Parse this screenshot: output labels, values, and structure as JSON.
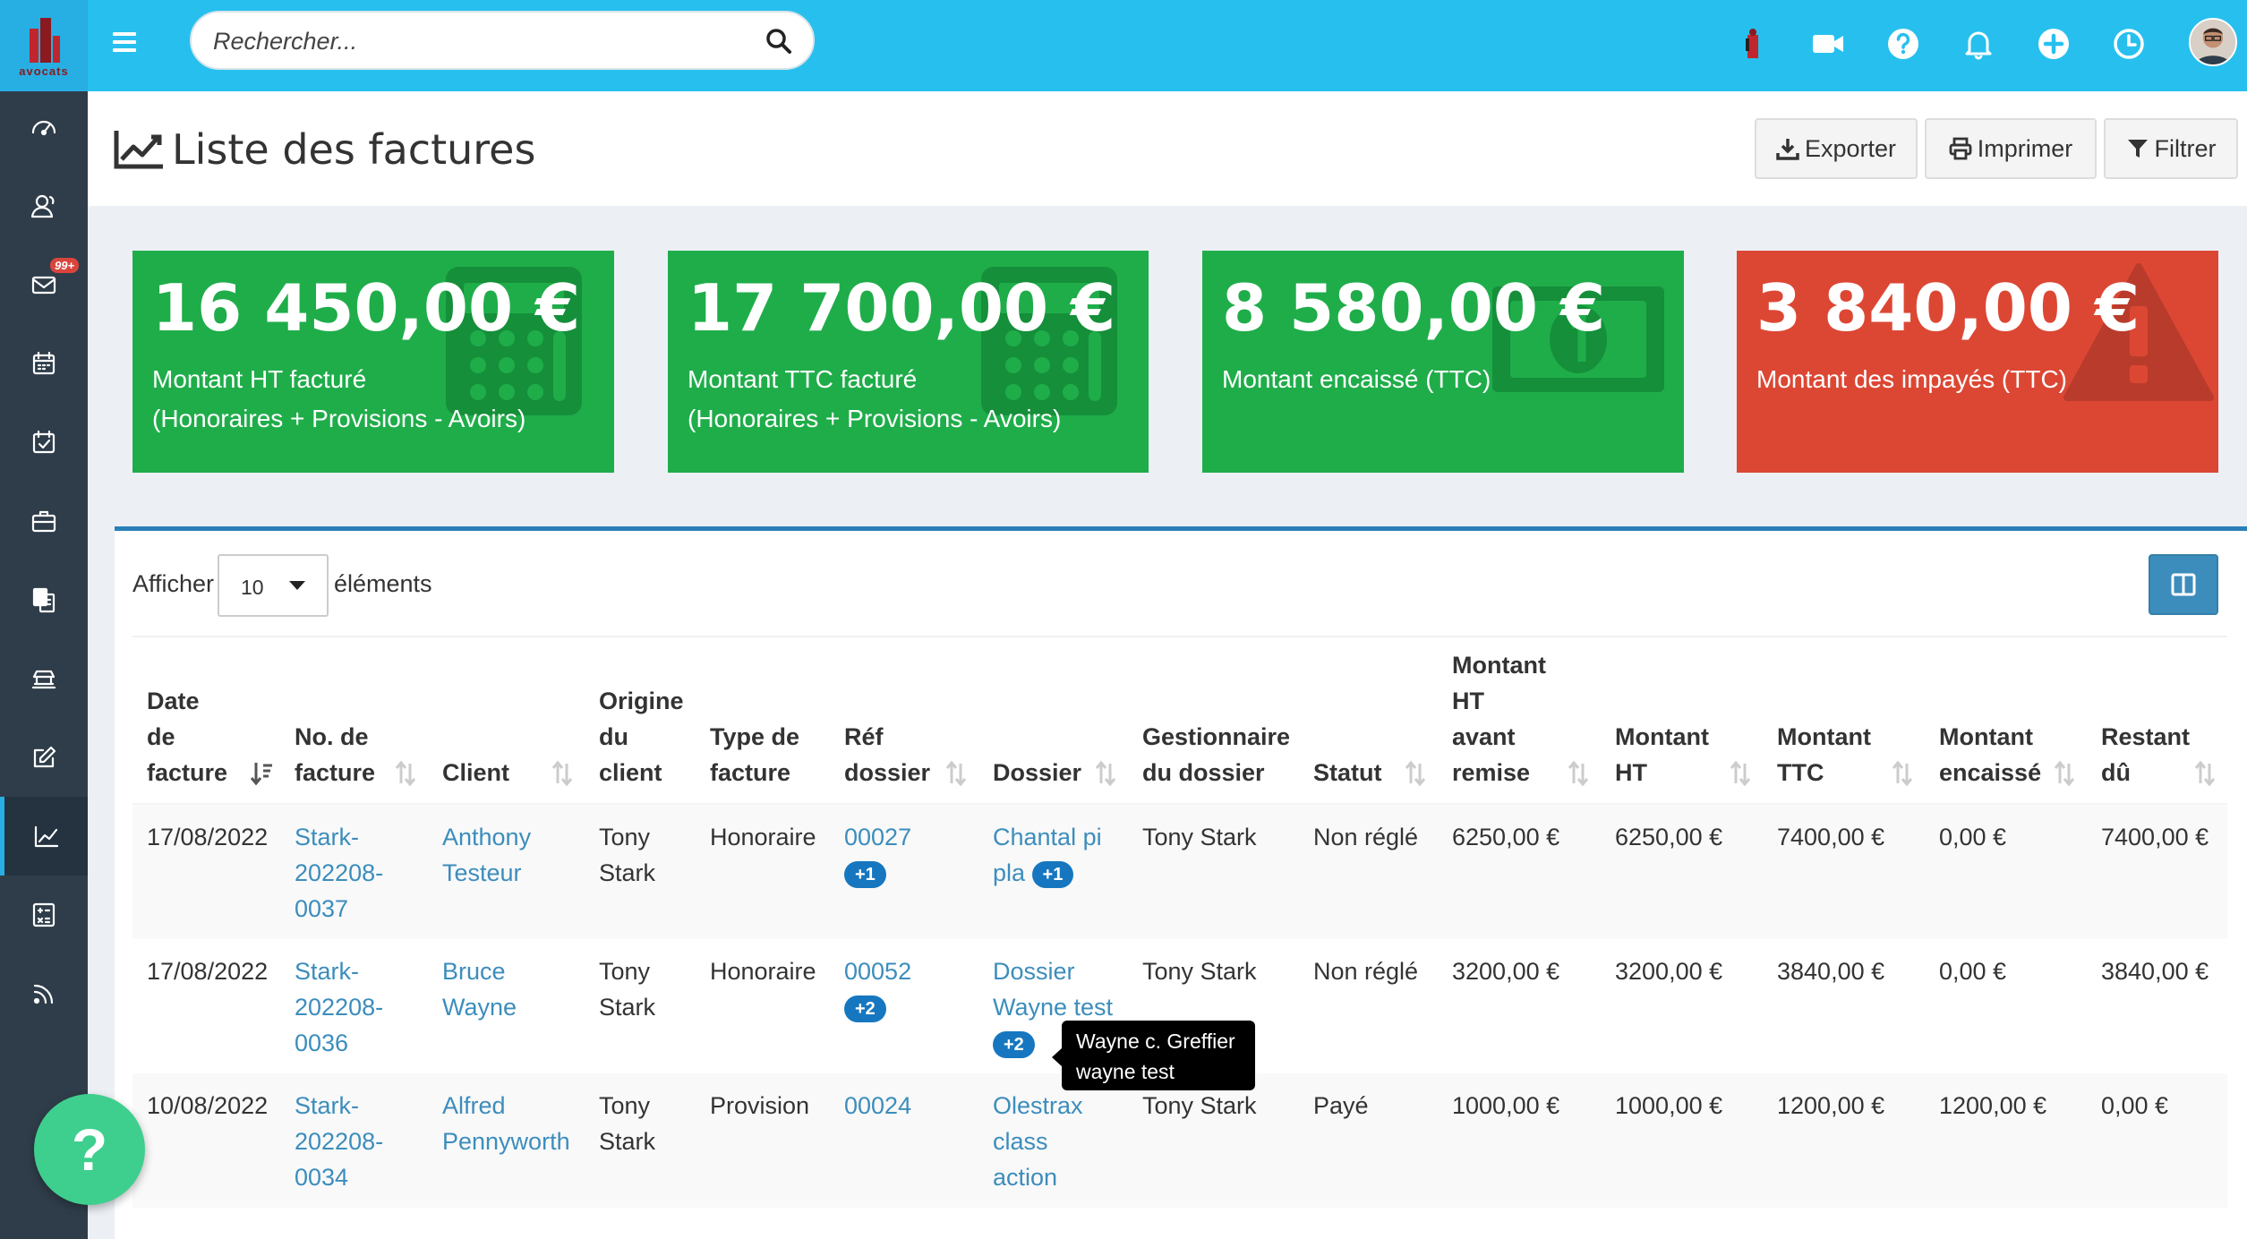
{
  "app": {
    "logo_text": "avocats"
  },
  "sidebar": {
    "items": [
      {
        "id": "dashboard",
        "icon": "dashboard-icon"
      },
      {
        "id": "contacts",
        "icon": "contacts-icon"
      },
      {
        "id": "mail",
        "icon": "mail-icon",
        "badge": "99+"
      },
      {
        "id": "calendar",
        "icon": "calendar-icon"
      },
      {
        "id": "tasks",
        "icon": "calendar-check-icon"
      },
      {
        "id": "cases",
        "icon": "briefcase-icon"
      },
      {
        "id": "documents",
        "icon": "documents-icon"
      },
      {
        "id": "court",
        "icon": "court-icon"
      },
      {
        "id": "edit",
        "icon": "edit-icon"
      },
      {
        "id": "invoices",
        "icon": "line-chart-icon",
        "active": true
      },
      {
        "id": "calculator",
        "icon": "calculator-icon"
      },
      {
        "id": "feed",
        "icon": "rss-icon"
      }
    ]
  },
  "search": {
    "placeholder": "Rechercher..."
  },
  "topbar": {
    "icons": [
      "user-icon",
      "video-icon",
      "help-icon",
      "bell-icon",
      "plus-icon",
      "clock-icon"
    ]
  },
  "page": {
    "title": "Liste des factures",
    "buttons": {
      "export": "Exporter",
      "print": "Imprimer",
      "filter": "Filtrer"
    }
  },
  "stats": [
    {
      "amount": "16 450,00 €",
      "line1": "Montant HT facturé",
      "line2": "(Honoraires + Provisions - Avoirs)",
      "color": "#1fad4a",
      "icon": "calculator-icon"
    },
    {
      "amount": "17 700,00 €",
      "line1": "Montant TTC facturé",
      "line2": "(Honoraires + Provisions - Avoirs)",
      "color": "#1fad4a",
      "icon": "calculator-icon"
    },
    {
      "amount": "8 580,00 €",
      "line1": "Montant encaissé (TTC)",
      "line2": "",
      "color": "#1fad4a",
      "icon": "money-bill-icon"
    },
    {
      "amount": "3 840,00 €",
      "line1": "Montant des impayés (TTC)",
      "line2": "",
      "color": "#dc4734",
      "icon": "warning-icon"
    }
  ],
  "table": {
    "show_label": "Afficher",
    "page_size": "10",
    "elements_label": "éléments",
    "headers": [
      [
        "Date",
        "de",
        "facture"
      ],
      [
        "No. de",
        "facture"
      ],
      [
        "Client"
      ],
      [
        "Origine",
        "du",
        "client"
      ],
      [
        "Type de",
        "facture"
      ],
      [
        "Réf",
        "dossier"
      ],
      [
        "Dossier"
      ],
      [
        "Gestionnaire",
        "du dossier"
      ],
      [
        "Statut"
      ],
      [
        "Montant",
        "HT",
        "avant",
        "remise"
      ],
      [
        "Montant",
        "HT"
      ],
      [
        "Montant",
        "TTC"
      ],
      [
        "Montant",
        "encaissé"
      ],
      [
        "Restant",
        "dû"
      ]
    ],
    "rows": [
      {
        "date": "17/08/2022",
        "number": [
          "Stark-",
          "202208-",
          "0037"
        ],
        "client": [
          "Anthony",
          "Testeur"
        ],
        "origin": [
          "Tony",
          "Stark"
        ],
        "type": "Honoraire",
        "ref": "00027",
        "ref_extra": "+1",
        "dossier": [
          "Chantal pi",
          "pla"
        ],
        "dossier_extra": "+1",
        "manager": "Tony Stark",
        "status": "Non réglé",
        "ht_before": "6250,00 €",
        "ht": "6250,00 €",
        "ttc": "7400,00 €",
        "paid": "0,00 €",
        "due": "7400,00 €"
      },
      {
        "date": "17/08/2022",
        "number": [
          "Stark-",
          "202208-",
          "0036"
        ],
        "client": [
          "Bruce",
          "Wayne"
        ],
        "origin": [
          "Tony",
          "Stark"
        ],
        "type": "Honoraire",
        "ref": "00052",
        "ref_extra": "+2",
        "dossier": [
          "Dossier",
          "Wayne test"
        ],
        "dossier_extra": "+2",
        "manager": "Tony Stark",
        "status": "Non réglé",
        "ht_before": "3200,00 €",
        "ht": "3200,00 €",
        "ttc": "3840,00 €",
        "paid": "0,00 €",
        "due": "3840,00 €"
      },
      {
        "date": "10/08/2022",
        "number": [
          "Stark-",
          "202208-",
          "0034"
        ],
        "client": [
          "Alfred",
          "Pennyworth"
        ],
        "origin": [
          "Tony",
          "Stark"
        ],
        "type": "Provision",
        "ref": "00024",
        "ref_extra": "",
        "dossier": [
          "Olestrax",
          "class",
          "action"
        ],
        "dossier_extra": "",
        "manager": "Tony Stark",
        "status": "Payé",
        "ht_before": "1000,00 €",
        "ht": "1000,00 €",
        "ttc": "1200,00 €",
        "paid": "1200,00 €",
        "due": "0,00 €"
      }
    ]
  },
  "tooltip": {
    "line1": "Wayne c. Greffier",
    "line2": "wayne test"
  },
  "help_button": "?"
}
